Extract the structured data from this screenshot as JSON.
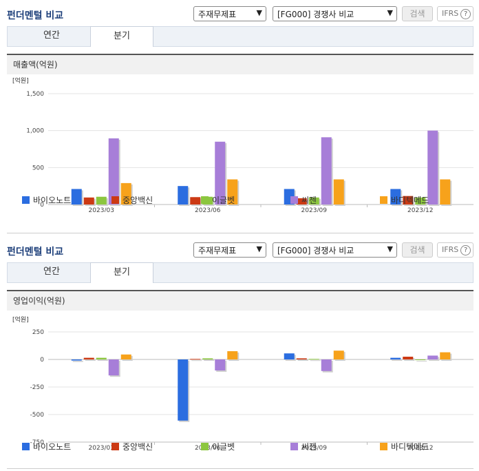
{
  "header": {
    "title": "펀더멘털 비교",
    "select1": "주재무제표",
    "select2": "[FG000] 경쟁사 비교",
    "search_label": "검색",
    "ifrs_label": "IFRS",
    "help_glyph": "?"
  },
  "tabs": [
    {
      "label": "연간",
      "active": false
    },
    {
      "label": "분기",
      "active": true
    }
  ],
  "colors": {
    "바이오노트": "#2b6de0",
    "중앙백신": "#cc3a14",
    "이글벳": "#8cc63f",
    "씨젠": "#a77ed8",
    "바디텍메드": "#f7a21b"
  },
  "chart_data": [
    {
      "type": "bar",
      "panel_title": "매출액(억원)",
      "unit_label": "[억원]",
      "categories": [
        "2023/03",
        "2023/06",
        "2023/09",
        "2023/12"
      ],
      "ylim": [
        0,
        1500
      ],
      "yticks": [
        0,
        500,
        1000,
        1500
      ],
      "ytick_labels": [
        "0",
        "500",
        "1,000",
        "1,500"
      ],
      "grid": true,
      "legend": "bottom",
      "series": [
        {
          "name": "바이오노트",
          "values": [
            210,
            250,
            210,
            210
          ]
        },
        {
          "name": "중앙백신",
          "values": [
            95,
            100,
            85,
            115
          ]
        },
        {
          "name": "이글벳",
          "values": [
            105,
            105,
            95,
            95
          ]
        },
        {
          "name": "씨젠",
          "values": [
            895,
            850,
            910,
            1000
          ]
        },
        {
          "name": "바디텍메드",
          "values": [
            290,
            340,
            340,
            340
          ]
        }
      ]
    },
    {
      "type": "bar",
      "panel_title": "영업이익(억원)",
      "unit_label": "[억원]",
      "categories": [
        "2023/03",
        "2023/06",
        "2023/09",
        "2023/12"
      ],
      "ylim": [
        -750,
        250
      ],
      "yticks": [
        -750,
        -500,
        -250,
        0,
        250
      ],
      "ytick_labels": [
        "-750",
        "-500",
        "-250",
        "0",
        "250"
      ],
      "grid": true,
      "legend": "bottom",
      "series": [
        {
          "name": "바이오노트",
          "values": [
            -10,
            -555,
            55,
            15
          ]
        },
        {
          "name": "중앙백신",
          "values": [
            15,
            5,
            10,
            25
          ]
        },
        {
          "name": "이글벳",
          "values": [
            15,
            10,
            5,
            0
          ]
        },
        {
          "name": "씨젠",
          "values": [
            -145,
            -100,
            -105,
            35
          ]
        },
        {
          "name": "바디텍메드",
          "values": [
            45,
            75,
            80,
            65
          ]
        }
      ]
    }
  ]
}
